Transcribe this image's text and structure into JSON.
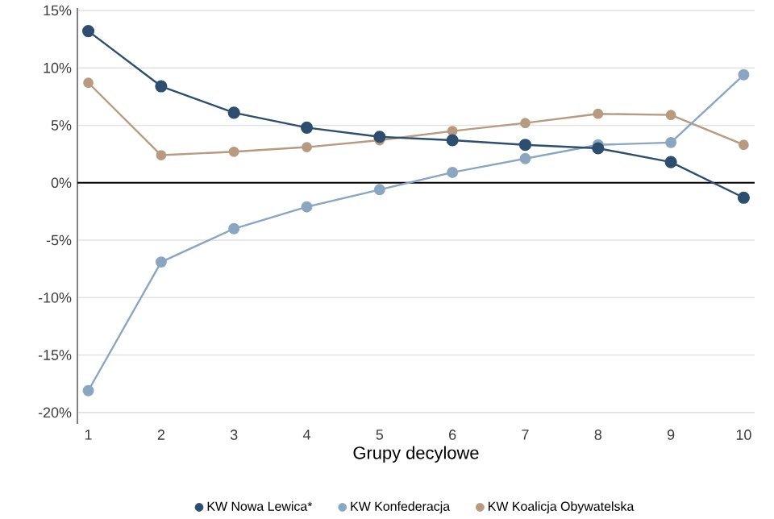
{
  "chart_data": {
    "type": "line",
    "xlabel": "Grupy decylowe",
    "x": [
      1,
      2,
      3,
      4,
      5,
      6,
      7,
      8,
      9,
      10
    ],
    "series": [
      {
        "name": "KW Nowa Lewica*",
        "color": "#2d4e6e",
        "values": [
          13.2,
          8.4,
          6.1,
          4.8,
          4.0,
          3.7,
          3.3,
          3.0,
          1.8,
          -1.3
        ]
      },
      {
        "name": "KW Konfederacja",
        "color": "#8aa6c1",
        "values": [
          -18.1,
          -6.9,
          -4.0,
          -2.1,
          -0.6,
          0.9,
          2.1,
          3.3,
          3.5,
          9.4
        ]
      },
      {
        "name": "KW Koalicja Obywatelska",
        "color": "#b89a80",
        "values": [
          8.7,
          2.4,
          2.7,
          3.1,
          3.7,
          4.5,
          5.2,
          6.0,
          5.9,
          3.3
        ]
      }
    ],
    "xlim": [
      0.85,
      10.15
    ],
    "xticks": [
      1,
      2,
      3,
      4,
      5,
      6,
      7,
      8,
      9,
      10
    ],
    "ylim": [
      -21,
      15.2
    ],
    "yticks": [
      {
        "value": -20,
        "label": "-20%"
      },
      {
        "value": -15,
        "label": "-15%"
      },
      {
        "value": -10,
        "label": "-10%"
      },
      {
        "value": -5,
        "label": "-5%"
      },
      {
        "value": 0,
        "label": "0%"
      },
      {
        "value": 5,
        "label": "5%"
      },
      {
        "value": 10,
        "label": "10%"
      },
      {
        "value": 15,
        "label": "15%"
      }
    ],
    "ref_lines": [
      {
        "axis": "y",
        "value": 0,
        "color": "#000000"
      }
    ],
    "grid": "y",
    "legend": "bottom",
    "marker": "circle",
    "line_style": "solid"
  }
}
